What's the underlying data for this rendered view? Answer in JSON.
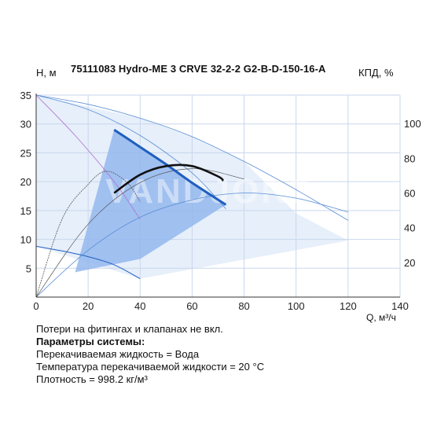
{
  "chart_data": {
    "type": "line",
    "title": "75111083 Hydro-ME 3 CRVE 32-2-2 G2-B-D-150-16-A",
    "ylabel_left": "H, м",
    "ylabel_right": "КПД, %",
    "xlabel": "Q, м³/ч",
    "xlim": [
      0,
      140
    ],
    "ylim": [
      0,
      35
    ],
    "y2lim": [
      0,
      120
    ],
    "x_ticks": [
      0,
      20,
      40,
      60,
      80,
      100,
      120,
      140
    ],
    "y_ticks": [
      5,
      10,
      15,
      20,
      25,
      30,
      35
    ],
    "y2_ticks": [
      20,
      40,
      60,
      80,
      100
    ],
    "grid": true,
    "watermark": "VANDJORD",
    "colors": {
      "grid": "#c9d7ec",
      "region": "#8fb4ee",
      "region_light": "#dce8f8",
      "head_curve": "#1f5fbf",
      "thin_curve": "#5b8fd6",
      "purple_curve": "#b070d0",
      "efficiency_curve": "#111111",
      "thin_dark": "#555555"
    },
    "series": [
      {
        "role": "operating-head",
        "axis": "left",
        "x": [
          30,
          40,
          50,
          60,
          73
        ],
        "y": [
          29.0,
          26.0,
          23.0,
          19.8,
          16.0
        ]
      },
      {
        "role": "max-head-outer",
        "axis": "left",
        "x": [
          0,
          20,
          40,
          60,
          80,
          100,
          120
        ],
        "y": [
          35,
          33.4,
          31.0,
          27.8,
          23.5,
          18.6,
          13.3
        ]
      },
      {
        "role": "max-head-inner",
        "axis": "left",
        "x": [
          0,
          20,
          40,
          60,
          73
        ],
        "y": [
          35,
          32.5,
          28.0,
          21.5,
          15.3
        ]
      },
      {
        "role": "min-head",
        "axis": "left",
        "x": [
          0,
          10,
          20,
          30,
          40
        ],
        "y": [
          8.8,
          8.0,
          7.0,
          5.6,
          3.2
        ]
      },
      {
        "role": "head-alt",
        "axis": "left",
        "x": [
          0,
          15,
          30,
          40
        ],
        "y": [
          35,
          28,
          20,
          13.5
        ]
      },
      {
        "role": "efficiency-operating",
        "axis": "right",
        "x": [
          30,
          40,
          50,
          60,
          70,
          72
        ],
        "y": [
          60,
          70.5,
          75.5,
          75.5,
          69.5,
          67
        ]
      },
      {
        "role": "efficiency-max",
        "axis": "right",
        "x": [
          0,
          20,
          40,
          60,
          80,
          100,
          120
        ],
        "y": [
          0,
          27,
          46,
          56,
          60,
          57,
          49
        ]
      },
      {
        "role": "efficiency-min",
        "axis": "right",
        "x": [
          0,
          10,
          20,
          27,
          35,
          40
        ],
        "y": [
          0,
          45,
          65,
          72.5,
          66,
          55
        ]
      },
      {
        "role": "efficiency-alt",
        "axis": "right",
        "x": [
          0,
          20,
          40,
          60,
          80
        ],
        "y": [
          0,
          42,
          66,
          74,
          68
        ]
      }
    ],
    "region_outline": [
      [
        30,
        29.0
      ],
      [
        40,
        26.0
      ],
      [
        50,
        23.0
      ],
      [
        60,
        19.8
      ],
      [
        73,
        16.0
      ],
      [
        40,
        6.6
      ],
      [
        15,
        4.3
      ]
    ]
  },
  "notes": {
    "line1": "Потери на фитингах и клапанах не вкл.",
    "heading": "Параметры системы:",
    "line2": "Перекачиваемая жидкость = Вода",
    "line3": "Температура перекачиваемой жидкости = 20 °C",
    "line4": "Плотность = 998.2 кг/м³"
  }
}
